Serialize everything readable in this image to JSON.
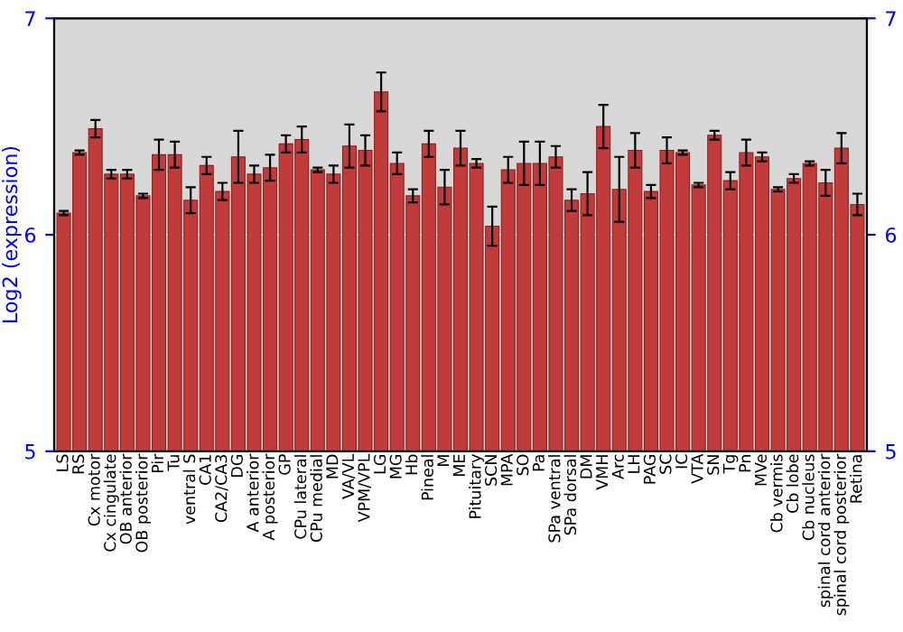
{
  "chart_data": {
    "type": "bar",
    "ylabel": "Log2 (expression)",
    "categories": [
      "LS",
      "RS",
      "Cx motor",
      "Cx cingulate",
      "OB anterior",
      "OB posterior",
      "Pir",
      "Tu",
      "ventral S",
      "CA1",
      "CA2/CA3",
      "DG",
      "A anterior",
      "A posterior",
      "GP",
      "CPu lateral",
      "CPu medial",
      "MD",
      "VA/VL",
      "VPM/VPL",
      "LG",
      "MG",
      "Hb",
      "Pineal",
      "M",
      "ME",
      "Pituitary",
      "SCN",
      "MPA",
      "SO",
      "Pa",
      "SPa ventral",
      "SPa dorsal",
      "DM",
      "VMH",
      "Arc",
      "LH",
      "PAG",
      "SC",
      "IC",
      "VTA",
      "SN",
      "Tg",
      "Pn",
      "MVe",
      "Cb vermis",
      "Cb lobe",
      "Cb nucleus",
      "spinal cord anterior",
      "spinal cord posterior",
      "Retina"
    ],
    "values": [
      6.1,
      6.38,
      6.49,
      6.28,
      6.28,
      6.18,
      6.37,
      6.37,
      6.16,
      6.32,
      6.2,
      6.36,
      6.28,
      6.31,
      6.42,
      6.44,
      6.3,
      6.28,
      6.41,
      6.39,
      6.66,
      6.33,
      6.18,
      6.42,
      6.22,
      6.4,
      6.33,
      6.04,
      6.3,
      6.33,
      6.33,
      6.36,
      6.16,
      6.19,
      6.5,
      6.21,
      6.39,
      6.2,
      6.39,
      6.38,
      6.23,
      6.46,
      6.25,
      6.38,
      6.36,
      6.21,
      6.26,
      6.33,
      6.24,
      6.4,
      6.14
    ],
    "errors": [
      0.01,
      0.01,
      0.04,
      0.02,
      0.02,
      0.01,
      0.07,
      0.06,
      0.06,
      0.04,
      0.04,
      0.12,
      0.04,
      0.06,
      0.04,
      0.06,
      0.01,
      0.04,
      0.1,
      0.07,
      0.09,
      0.05,
      0.03,
      0.06,
      0.08,
      0.08,
      0.02,
      0.09,
      0.06,
      0.1,
      0.1,
      0.05,
      0.05,
      0.1,
      0.1,
      0.15,
      0.08,
      0.03,
      0.06,
      0.01,
      0.01,
      0.02,
      0.04,
      0.06,
      0.02,
      0.01,
      0.02,
      0.01,
      0.06,
      0.07,
      0.05
    ],
    "color": "#c23b3b",
    "ylim": [
      5,
      7
    ],
    "yticks": [
      5,
      6,
      7
    ],
    "y2lim": [
      5,
      7
    ],
    "y2ticks": [
      5,
      6,
      7
    ],
    "grid": "y"
  }
}
